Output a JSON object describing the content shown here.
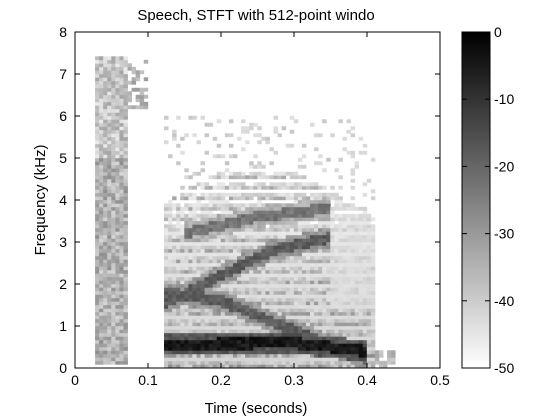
{
  "chart_data": {
    "type": "heatmap",
    "title": "Speech, STFT with 512-point windo",
    "xlabel": "Time (seconds)",
    "ylabel": "Frequency (kHz)",
    "xlim": [
      0,
      0.5
    ],
    "ylim": [
      0,
      8
    ],
    "x_ticks": [
      "0",
      "0.1",
      "0.2",
      "0.3",
      "0.4",
      "0.5"
    ],
    "y_ticks": [
      "0",
      "1",
      "2",
      "3",
      "4",
      "5",
      "6",
      "7",
      "8"
    ],
    "colorbar": {
      "range": [
        -50,
        0
      ],
      "ticks": [
        "0",
        "-10",
        "-20",
        "-30",
        "-40",
        "-50"
      ],
      "colormap": "gray (black = 0, white = -50)"
    },
    "grid": false,
    "features": [
      {
        "name": "low harmonic",
        "points": [
          [
            0.12,
            0.55
          ],
          [
            0.2,
            0.58
          ],
          [
            0.3,
            0.6
          ],
          [
            0.4,
            0.4
          ]
        ],
        "level": -2
      },
      {
        "name": "rising formant",
        "points": [
          [
            0.12,
            1.5
          ],
          [
            0.2,
            2.2
          ],
          [
            0.27,
            2.8
          ],
          [
            0.35,
            3.1
          ]
        ],
        "level": -15
      },
      {
        "name": "falling formant",
        "points": [
          [
            0.12,
            1.8
          ],
          [
            0.2,
            1.6
          ],
          [
            0.3,
            0.9
          ],
          [
            0.4,
            0.2
          ]
        ],
        "level": -15
      },
      {
        "name": "upper formant",
        "points": [
          [
            0.15,
            3.2
          ],
          [
            0.25,
            3.6
          ],
          [
            0.35,
            3.8
          ]
        ],
        "level": -20
      }
    ]
  }
}
